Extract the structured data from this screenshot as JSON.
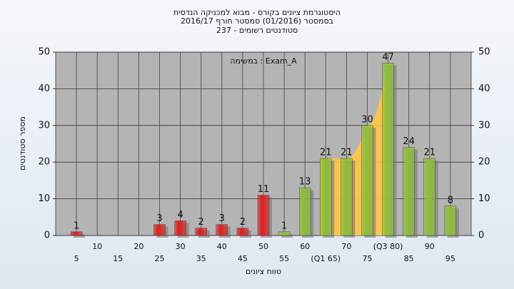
{
  "chart_data": {
    "type": "bar",
    "title": [
      "היסטוגרמת ציונים בקורס - מבוא למכניקה הנדסית",
      "בסמסטר  (01/2016)  סמסטר חורף 2016/17",
      "סטודנטים רשומים - 237"
    ],
    "annotation": "במשימה : Exam_A",
    "x_label": "טווח ציונים",
    "y_label": "מספר סטודנטים",
    "x": [
      5,
      10,
      15,
      20,
      25,
      30,
      35,
      40,
      45,
      50,
      55,
      60,
      65,
      70,
      75,
      80,
      85,
      90,
      95
    ],
    "xticks": [
      {
        "value": 5,
        "label": "5"
      },
      {
        "value": 10,
        "label": "10"
      },
      {
        "value": 15,
        "label": "15"
      },
      {
        "value": 20,
        "label": "20"
      },
      {
        "value": 25,
        "label": "25"
      },
      {
        "value": 30,
        "label": "30"
      },
      {
        "value": 35,
        "label": "35"
      },
      {
        "value": 40,
        "label": "40"
      },
      {
        "value": 45,
        "label": "45"
      },
      {
        "value": 50,
        "label": "50"
      },
      {
        "value": 55,
        "label": "55"
      },
      {
        "value": 60,
        "label": "60"
      },
      {
        "value": 65,
        "label": "(Q1 65)"
      },
      {
        "value": 70,
        "label": "70"
      },
      {
        "value": 75,
        "label": "75"
      },
      {
        "value": 80,
        "label": "(Q3 80)"
      },
      {
        "value": 85,
        "label": "85"
      },
      {
        "value": 90,
        "label": "90"
      },
      {
        "value": 95,
        "label": "95"
      }
    ],
    "values": [
      1,
      0,
      0,
      0,
      3,
      4,
      2,
      3,
      2,
      11,
      1,
      13,
      21,
      21,
      30,
      47,
      24,
      21,
      8
    ],
    "colors": [
      "#e02020",
      "#e02020",
      "#e02020",
      "#e02020",
      "#e02020",
      "#e02020",
      "#e02020",
      "#e02020",
      "#e02020",
      "#e02020",
      "#8fbf3a",
      "#8fbf3a",
      "#8fbf3a",
      "#8fbf3a",
      "#8fbf3a",
      "#8fbf3a",
      "#8fbf3a",
      "#8fbf3a",
      "#8fbf3a"
    ],
    "q1": 65,
    "q3": 80,
    "quartile_color": "#ffc845",
    "xlim": [
      0,
      100
    ],
    "ylim": [
      0,
      50
    ],
    "yticks": [
      0,
      10,
      20,
      30,
      40,
      50
    ],
    "y2lim": [
      0,
      50
    ],
    "y2ticks": [
      0,
      10,
      20,
      30,
      40,
      50
    ],
    "grid": true
  }
}
